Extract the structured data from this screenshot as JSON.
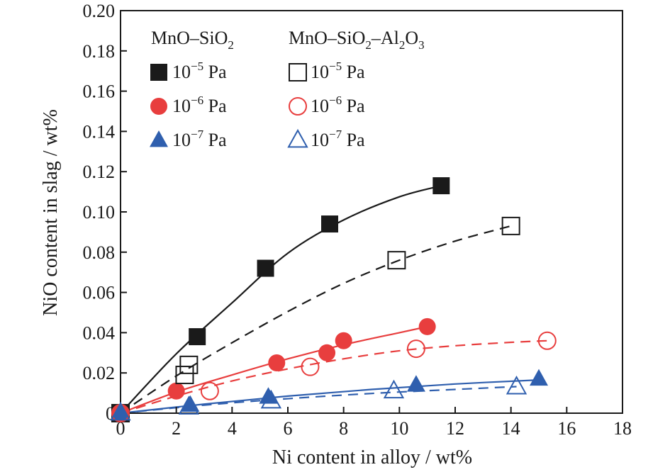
{
  "chart_data": {
    "type": "scatter",
    "title": "",
    "xlabel": "Ni content in alloy / wt%",
    "ylabel": "NiO content in slag / wt%",
    "xlim": [
      0,
      18
    ],
    "ylim": [
      0,
      0.2
    ],
    "xticks": [
      "0",
      "2",
      "4",
      "6",
      "8",
      "10",
      "12",
      "14",
      "16",
      "18"
    ],
    "yticks": [
      "0",
      "0.02",
      "0.04",
      "0.06",
      "0.08",
      "0.10",
      "0.12",
      "0.14",
      "0.16",
      "0.18",
      "0.20"
    ],
    "grid": false,
    "legend_position": "top-left",
    "legend_headers": {
      "left": {
        "base": "MnO–SiO",
        "sub": "2"
      },
      "right": {
        "parts": [
          {
            "t": "MnO–SiO",
            "sub": "2"
          },
          {
            "t": "–Al",
            "sub": "2"
          },
          {
            "t": "O",
            "sub": "3"
          }
        ]
      }
    },
    "series": [
      {
        "name": "10⁻⁵ Pa",
        "label_base": "10",
        "label_exp": "−5",
        "label_unit": " Pa",
        "slag": "MnO–SiO2",
        "marker": "square",
        "filled": true,
        "color": "#1a1a1a",
        "line": "solid",
        "x": [
          0,
          2.75,
          5.2,
          7.5,
          11.5
        ],
        "y": [
          0,
          0.038,
          0.072,
          0.094,
          0.113
        ],
        "fit_x": [
          0,
          2,
          4,
          6,
          8,
          10,
          11.5
        ],
        "fit_y": [
          0,
          0.0295,
          0.0548,
          0.0795,
          0.096,
          0.1075,
          0.113
        ]
      },
      {
        "name": "10⁻⁶ Pa",
        "label_base": "10",
        "label_exp": "−6",
        "label_unit": " Pa",
        "slag": "MnO–SiO2",
        "marker": "circle",
        "filled": true,
        "color": "#e83e3e",
        "line": "solid",
        "x": [
          0,
          2.0,
          5.6,
          7.4,
          8.0,
          11.0
        ],
        "y": [
          0,
          0.011,
          0.025,
          0.03,
          0.036,
          0.043
        ],
        "fit_x": [
          0,
          2,
          4,
          6,
          8,
          10,
          11
        ],
        "fit_y": [
          0,
          0.0105,
          0.019,
          0.027,
          0.034,
          0.04,
          0.043
        ]
      },
      {
        "name": "10⁻⁷ Pa",
        "label_base": "10",
        "label_exp": "−7",
        "label_unit": " Pa",
        "slag": "MnO–SiO2",
        "marker": "triangle",
        "filled": true,
        "color": "#2f5fae",
        "line": "solid",
        "x": [
          0,
          2.5,
          5.3,
          10.6,
          15.0
        ],
        "y": [
          0,
          0.004,
          0.008,
          0.014,
          0.017
        ],
        "fit_x": [
          0,
          3,
          6,
          9,
          12,
          15
        ],
        "fit_y": [
          0,
          0.0045,
          0.0085,
          0.0118,
          0.0145,
          0.0165
        ]
      },
      {
        "name": "10⁻⁵ Pa",
        "label_base": "10",
        "label_exp": "−5",
        "label_unit": " Pa",
        "slag": "MnO–SiO2–Al2O3",
        "marker": "square",
        "filled": false,
        "color": "#1a1a1a",
        "line": "dashed",
        "x": [
          0,
          2.3,
          2.45,
          9.9,
          14.0
        ],
        "y": [
          0,
          0.019,
          0.024,
          0.076,
          0.093
        ],
        "fit_x": [
          0,
          2,
          4,
          6,
          8,
          10,
          12,
          14
        ],
        "fit_y": [
          0,
          0.0185,
          0.035,
          0.0505,
          0.0645,
          0.076,
          0.0855,
          0.093
        ]
      },
      {
        "name": "10⁻⁶ Pa",
        "label_base": "10",
        "label_exp": "−6",
        "label_unit": " Pa",
        "slag": "MnO–SiO2–Al2O3",
        "marker": "circle",
        "filled": false,
        "color": "#e83e3e",
        "line": "dashed",
        "x": [
          0,
          3.2,
          6.8,
          10.6,
          15.3
        ],
        "y": [
          0,
          0.011,
          0.023,
          0.032,
          0.036
        ],
        "fit_x": [
          0,
          2,
          4,
          6,
          8,
          10,
          12,
          14,
          15.3
        ],
        "fit_y": [
          0,
          0.0085,
          0.016,
          0.022,
          0.027,
          0.031,
          0.0335,
          0.0352,
          0.036
        ]
      },
      {
        "name": "10⁻⁷ Pa",
        "label_base": "10",
        "label_exp": "−7",
        "label_unit": " Pa",
        "slag": "MnO–SiO2–Al2O3",
        "marker": "triangle",
        "filled": false,
        "color": "#2f5fae",
        "line": "dashed",
        "x": [
          0,
          2.45,
          5.4,
          9.8,
          14.2
        ],
        "y": [
          0,
          0.003,
          0.006,
          0.011,
          0.013
        ],
        "fit_x": [
          0,
          3,
          6,
          9,
          12,
          14.2
        ],
        "fit_y": [
          0,
          0.004,
          0.0072,
          0.0098,
          0.0118,
          0.0132
        ]
      }
    ]
  }
}
